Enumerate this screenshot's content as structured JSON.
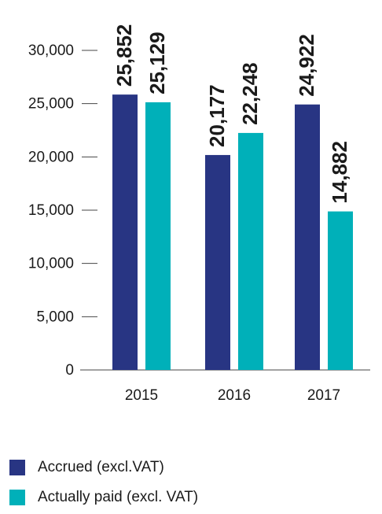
{
  "chart_data": {
    "type": "bar",
    "categories": [
      "2015",
      "2016",
      "2017"
    ],
    "series": [
      {
        "name": "Accrued (excl.VAT)",
        "values": [
          25852,
          20177,
          24922
        ],
        "labels": [
          "25,852",
          "20,177",
          "24,922"
        ],
        "color": "#283583"
      },
      {
        "name": "Actually paid (excl. VAT)",
        "values": [
          25129,
          22248,
          14882
        ],
        "labels": [
          "25,129",
          "22,248",
          "14,882"
        ],
        "color": "#00b0b9"
      }
    ],
    "yticks": [
      0,
      5000,
      10000,
      15000,
      20000,
      25000,
      30000
    ],
    "ytick_labels": [
      "0",
      "5,000",
      "10,000",
      "15,000",
      "20,000",
      "25,000",
      "30,000"
    ],
    "ylim": [
      0,
      30000
    ],
    "grid": false,
    "legend_position": "bottom-left",
    "title": "",
    "xlabel": "",
    "ylabel": ""
  }
}
